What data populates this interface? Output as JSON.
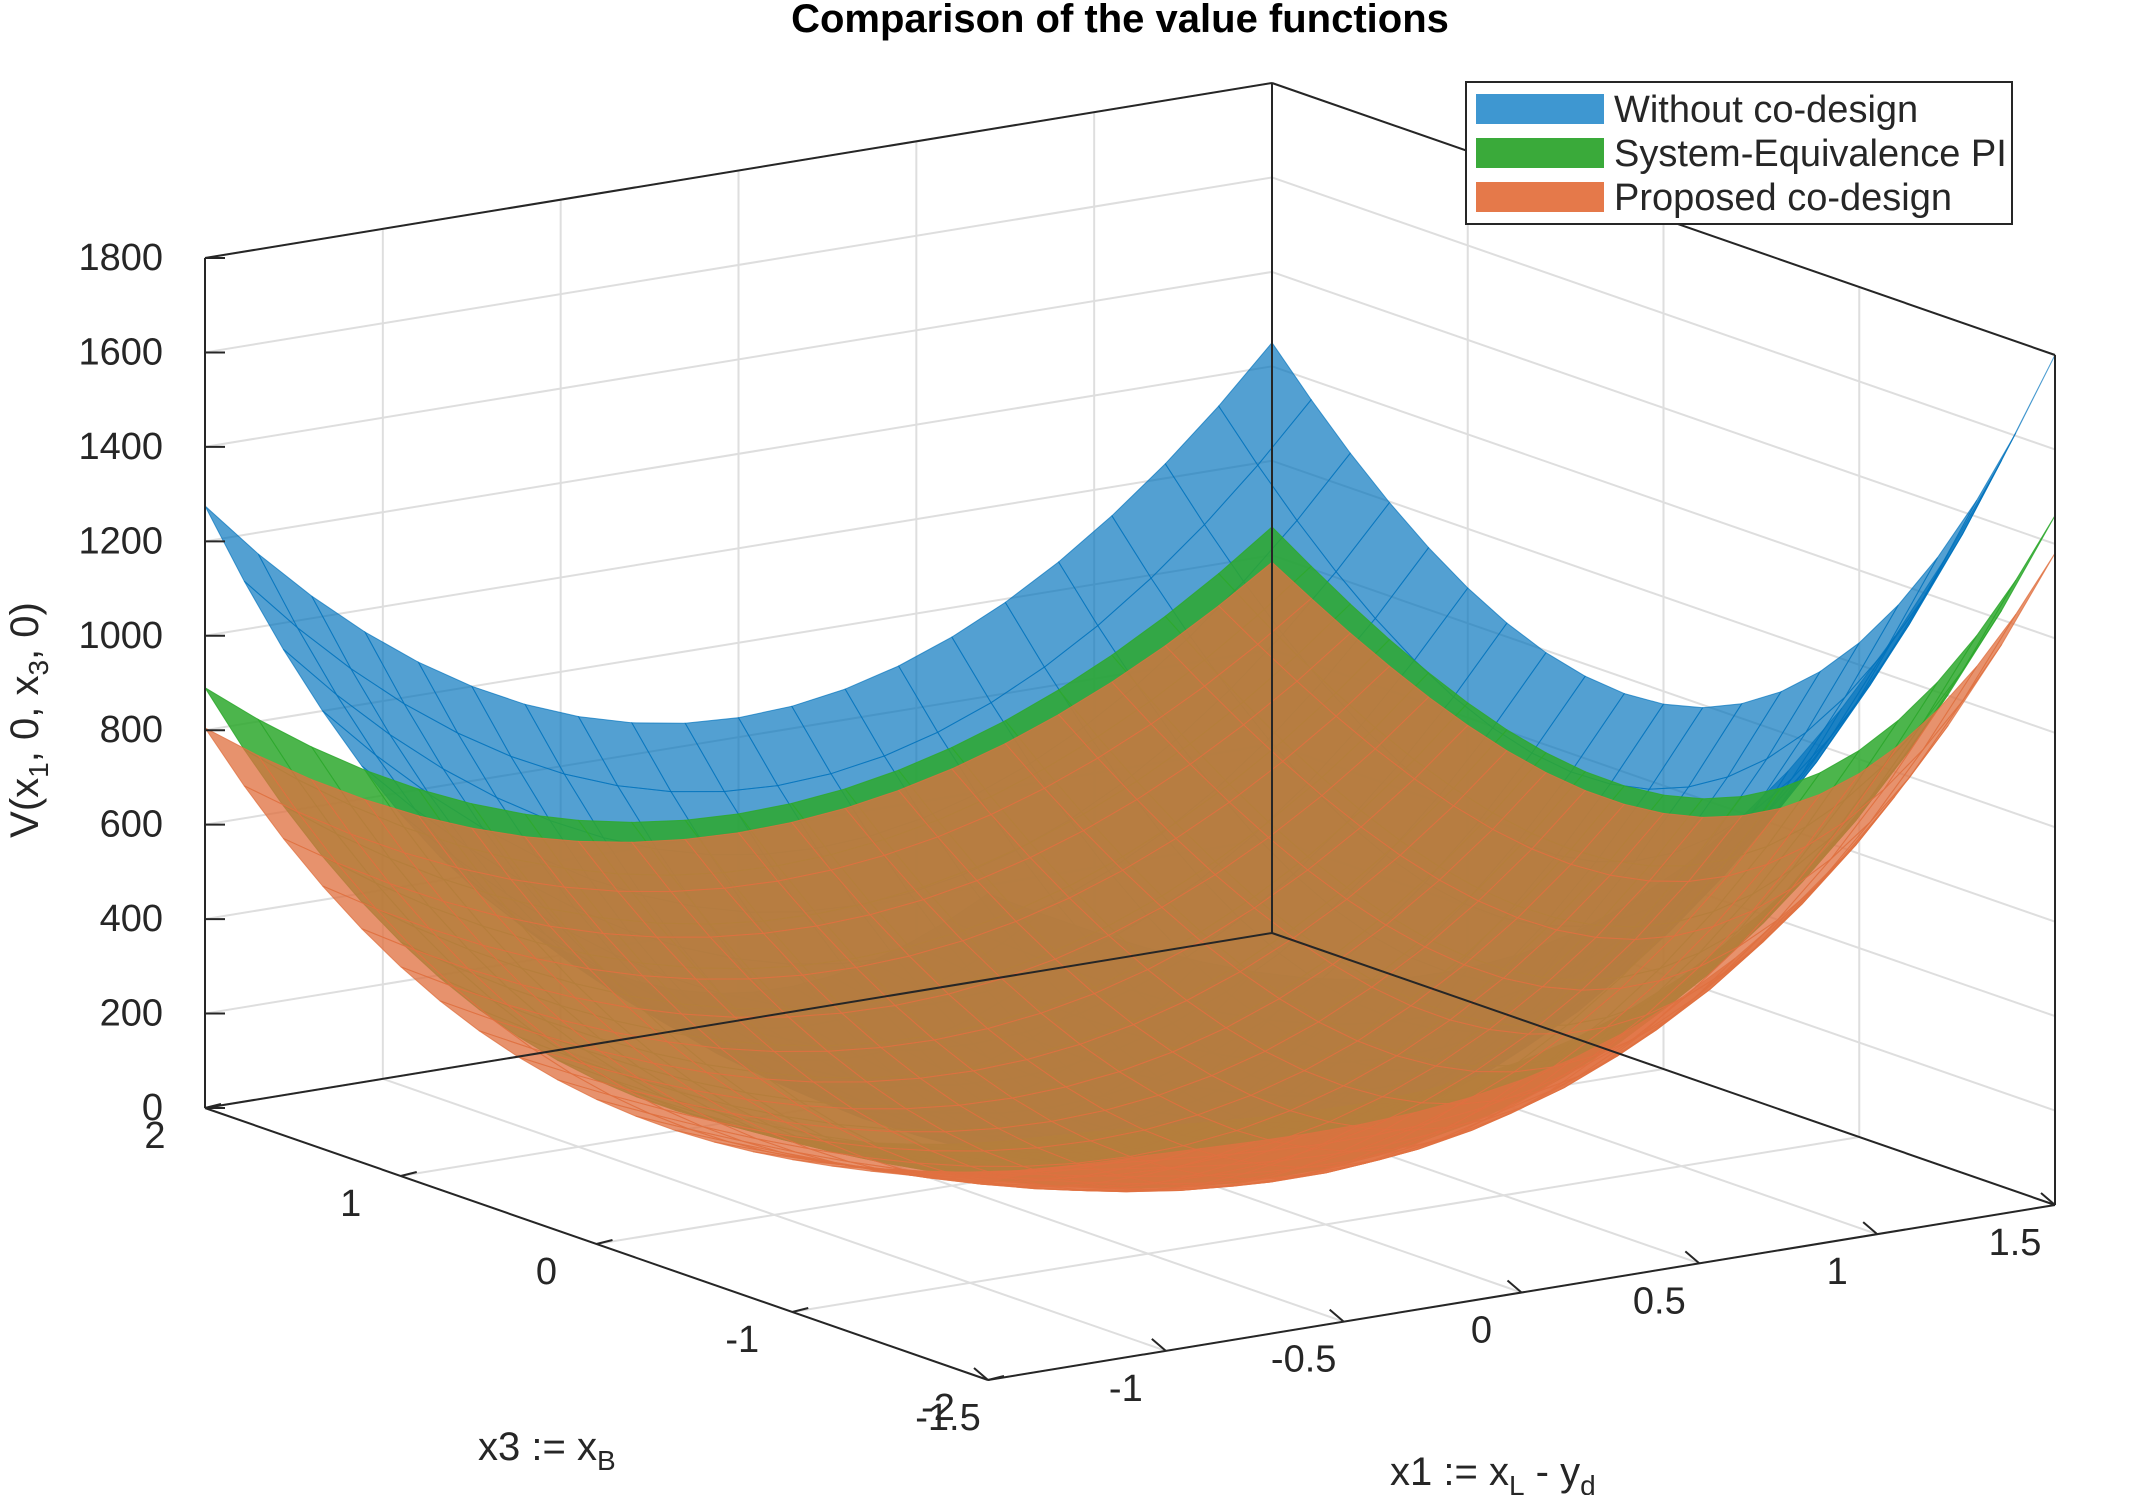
{
  "chart_data": {
    "type": "surface",
    "title": "Comparison of the value functions",
    "xlabel": {
      "main": "x1  :=  x",
      "sub": "L",
      "mid": "  -  y",
      "sub2": "d"
    },
    "ylabel": {
      "main": "x3  :=  x",
      "sub": "B"
    },
    "zlabel": {
      "p1": "V(x",
      "s1": "1",
      "p2": ",  0,  x",
      "s2": "3",
      "p3": ",  0)"
    },
    "x_ticks": [
      "-1.5",
      "-1",
      "-0.5",
      "0",
      "0.5",
      "1",
      "1.5"
    ],
    "y_ticks": [
      "-2",
      "-1",
      "0",
      "1",
      "2"
    ],
    "z_ticks": [
      "0",
      "200",
      "400",
      "600",
      "800",
      "1000",
      "1200",
      "1400",
      "1600",
      "1800"
    ],
    "xlim": [
      -1.5,
      1.5
    ],
    "ylim": [
      -2,
      2
    ],
    "zlim": [
      0,
      1800
    ],
    "grid": true,
    "legend_position": "top-right",
    "series": [
      {
        "name": "Without co-design",
        "color": "#0072BD",
        "alpha": 0.75,
        "corner_values": {
          "x-1.5_y2": 1275,
          "x-1.5_y-2": 1030,
          "x1.5_y-2": 1800,
          "x1.5_y2": 1250,
          "min_at_x0_y0": 20
        }
      },
      {
        "name": "System-Equivalence PI",
        "color": "#2EA82E",
        "alpha": 0.95,
        "corner_values": {
          "x-1.5_y2": 890,
          "x-1.5_y-2": 500,
          "x1.5_y-2": 1460,
          "x1.5_y2": 860,
          "min_at_x0_y0": 0
        }
      },
      {
        "name": "Proposed co-design",
        "color": "#E07040",
        "alpha": 0.85,
        "corner_values": {
          "x-1.5_y2": 805,
          "x-1.5_y-2": 420,
          "x1.5_y-2": 1380,
          "x1.5_y2": 785,
          "min_at_x0_y0": 0
        }
      }
    ]
  }
}
